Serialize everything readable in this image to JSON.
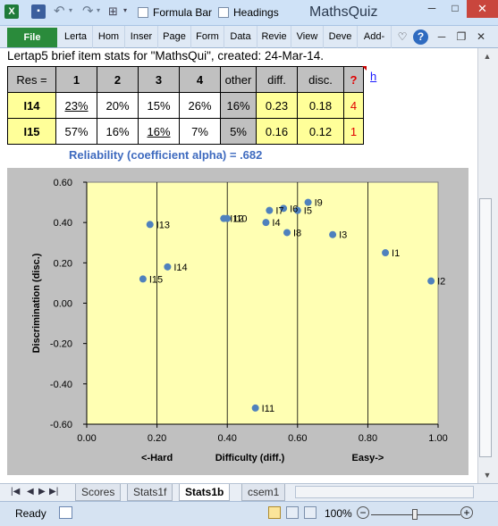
{
  "window": {
    "title": "MathsQuiz",
    "quick_access": {
      "formula_bar_label": "Formula Bar",
      "headings_label": "Headings",
      "icons": [
        "excel-icon",
        "save-icon",
        "undo-icon",
        "redo-icon",
        "view-options-icon"
      ]
    },
    "controls": {
      "minimize": "─",
      "maximize": "□",
      "close": "✕"
    }
  },
  "ribbon": {
    "file_tab": "File",
    "tabs": [
      "Lerta",
      "Hom",
      "Inser",
      "Page",
      "Form",
      "Data",
      "Revie",
      "View",
      "Deve",
      "Add-"
    ],
    "right_icons": {
      "collapse": "♡",
      "help": "?",
      "min": "─",
      "restore": "❐",
      "close": "✕"
    }
  },
  "sheet": {
    "info_line": "Lertap5 brief item stats for \"MathsQui\", created: 24-Mar-14.",
    "table": {
      "headers": [
        "Res =",
        "1",
        "2",
        "3",
        "4",
        "other",
        "diff.",
        "disc.",
        "?"
      ],
      "rows": [
        {
          "item": "I14",
          "opts": [
            "23%",
            "20%",
            "15%",
            "26%"
          ],
          "other": "16%",
          "diff": "0.23",
          "disc": "0.18",
          "flag": "4"
        },
        {
          "item": "I15",
          "opts": [
            "57%",
            "16%",
            "16%",
            "7%"
          ],
          "other": "5%",
          "diff": "0.16",
          "disc": "0.12",
          "flag": "1"
        }
      ]
    },
    "link_h": "h",
    "reliability": "Reliability (coefficient alpha) =  .682"
  },
  "chart_data": {
    "type": "scatter",
    "title": "",
    "xlabel": "Difficulty (diff.)",
    "ylabel": "Discrimination (disc.)",
    "x_annotations": {
      "left": "<-Hard",
      "right": "Easy->"
    },
    "xlim": [
      0,
      1
    ],
    "ylim": [
      -0.6,
      0.6
    ],
    "x_ticks": [
      "0.00",
      "0.20",
      "0.40",
      "0.60",
      "0.80",
      "1.00"
    ],
    "y_ticks": [
      "0.60",
      "0.40",
      "0.20",
      "0.00",
      "-0.20",
      "-0.40",
      "-0.60"
    ],
    "grid": "vertical",
    "plot_bg": "#ffffb3",
    "area_bg": "#c0c0c0",
    "point_color": "#4f81bd",
    "points": [
      {
        "label": "I1",
        "x": 0.85,
        "y": 0.25
      },
      {
        "label": "I2",
        "x": 0.98,
        "y": 0.11
      },
      {
        "label": "I3",
        "x": 0.7,
        "y": 0.34
      },
      {
        "label": "I4",
        "x": 0.51,
        "y": 0.4
      },
      {
        "label": "I5",
        "x": 0.6,
        "y": 0.46
      },
      {
        "label": "I6",
        "x": 0.56,
        "y": 0.47
      },
      {
        "label": "I7",
        "x": 0.52,
        "y": 0.46
      },
      {
        "label": "I8",
        "x": 0.57,
        "y": 0.35
      },
      {
        "label": "I9",
        "x": 0.63,
        "y": 0.5
      },
      {
        "label": "I10",
        "x": 0.4,
        "y": 0.42
      },
      {
        "label": "I11",
        "x": 0.48,
        "y": -0.52
      },
      {
        "label": "I12",
        "x": 0.39,
        "y": 0.42
      },
      {
        "label": "I13",
        "x": 0.18,
        "y": 0.39
      },
      {
        "label": "I14",
        "x": 0.23,
        "y": 0.18
      },
      {
        "label": "I15",
        "x": 0.16,
        "y": 0.12
      }
    ]
  },
  "sheet_tabs": {
    "tabs": [
      "Scores",
      "Stats1f",
      "Stats1b",
      "csem1"
    ],
    "active": "Stats1b"
  },
  "status": {
    "ready": "Ready",
    "zoom": "100%",
    "zoom_value": 1.0
  }
}
